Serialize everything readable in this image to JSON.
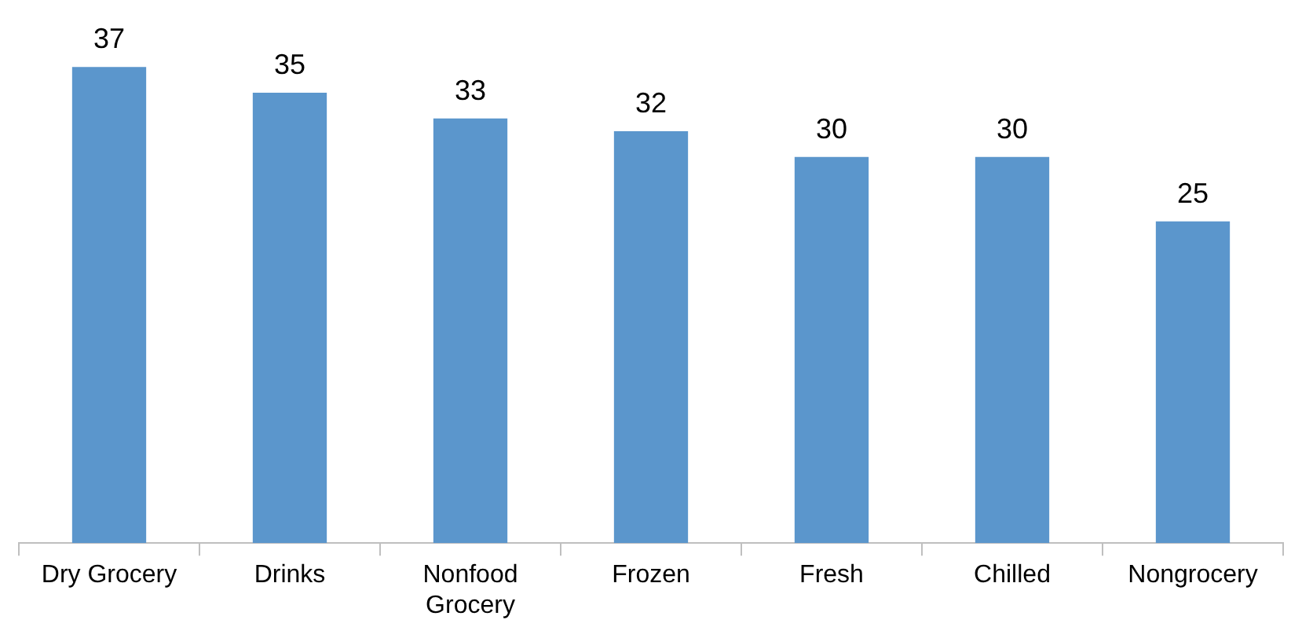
{
  "chart_data": {
    "type": "bar",
    "categories": [
      "Dry Grocery",
      "Drinks",
      "Nonfood Grocery",
      "Frozen",
      "Fresh",
      "Chilled",
      "Nongrocery"
    ],
    "values": [
      37,
      35,
      33,
      32,
      30,
      30,
      25
    ],
    "color": "#5b96cc",
    "data_labels": true,
    "grid": false,
    "legend": false
  }
}
